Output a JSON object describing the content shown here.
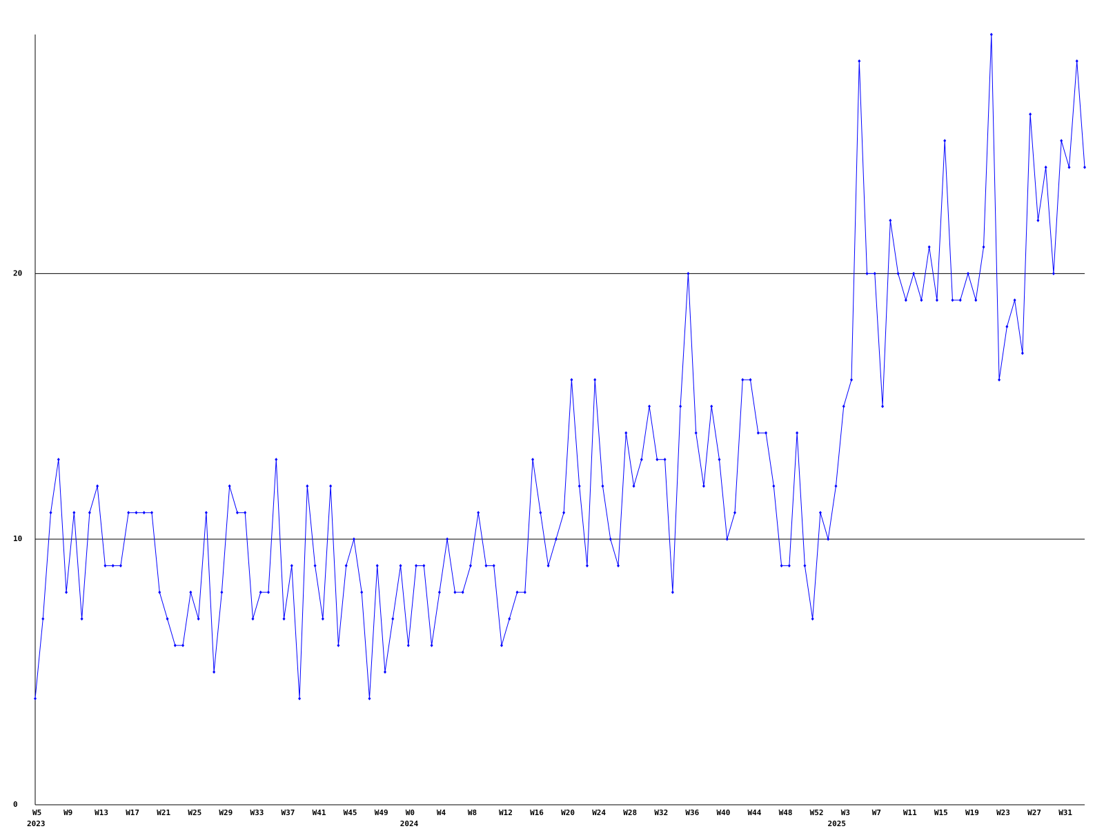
{
  "chart_data": {
    "type": "line",
    "categories": [
      "W5",
      null,
      null,
      null,
      "W9",
      null,
      null,
      null,
      "W13",
      null,
      null,
      null,
      "W17",
      null,
      null,
      null,
      "W21",
      null,
      null,
      null,
      "W25",
      null,
      null,
      null,
      "W29",
      null,
      null,
      null,
      "W33",
      null,
      null,
      null,
      "W37",
      null,
      null,
      null,
      "W41",
      null,
      null,
      null,
      "W45",
      null,
      null,
      null,
      "W49",
      null,
      null,
      null,
      "W0",
      null,
      null,
      null,
      "W4",
      null,
      null,
      null,
      "W8",
      null,
      null,
      null,
      "W12",
      null,
      null,
      null,
      "W16",
      null,
      null,
      null,
      "W20",
      null,
      null,
      null,
      "W24",
      null,
      null,
      null,
      "W28",
      null,
      null,
      null,
      "W32",
      null,
      null,
      null,
      "W36",
      null,
      null,
      null,
      "W40",
      null,
      null,
      null,
      "W44",
      null,
      null,
      null,
      "W48",
      null,
      null,
      null,
      "W52",
      null,
      null,
      null,
      "W3",
      null,
      null,
      null,
      "W7",
      null,
      null,
      null,
      "W11",
      null,
      null,
      null,
      "W15",
      null,
      null,
      null,
      "W19",
      null,
      null,
      null,
      "W23",
      null,
      null,
      null,
      "W27",
      null,
      null,
      null,
      "W31",
      null,
      null,
      null
    ],
    "years": [
      "2023",
      null,
      null,
      null,
      null,
      null,
      null,
      null,
      null,
      null,
      null,
      null,
      null,
      null,
      null,
      null,
      null,
      null,
      null,
      null,
      null,
      null,
      null,
      null,
      null,
      null,
      null,
      null,
      null,
      null,
      null,
      null,
      null,
      null,
      null,
      null,
      null,
      null,
      null,
      null,
      null,
      null,
      null,
      null,
      null,
      null,
      null,
      null,
      "2024",
      null,
      null,
      null,
      null,
      null,
      null,
      null,
      null,
      null,
      null,
      null,
      null,
      null,
      null,
      null,
      null,
      null,
      null,
      null,
      null,
      null,
      null,
      null,
      null,
      null,
      null,
      null,
      null,
      null,
      null,
      null,
      null,
      null,
      null,
      null,
      null,
      null,
      null,
      null,
      null,
      null,
      null,
      null,
      null,
      null,
      null,
      null,
      null,
      null,
      null,
      null,
      null,
      null,
      null,
      "2025",
      null,
      null,
      null,
      null,
      null,
      null,
      null,
      null,
      null,
      null,
      null,
      null,
      null,
      null,
      null,
      null,
      null,
      null,
      null,
      null,
      null,
      null,
      null,
      null,
      null,
      null,
      null,
      null,
      null,
      null,
      null,
      null,
      null,
      null
    ],
    "values": [
      4,
      7,
      11,
      13,
      8,
      11,
      7,
      11,
      12,
      9,
      9,
      9,
      11,
      11,
      11,
      11,
      8,
      7,
      6,
      6,
      8,
      7,
      11,
      5,
      8,
      12,
      11,
      11,
      7,
      8,
      8,
      13,
      7,
      9,
      4,
      12,
      9,
      7,
      12,
      6,
      9,
      10,
      8,
      4,
      9,
      5,
      7,
      9,
      6,
      9,
      9,
      6,
      8,
      10,
      8,
      8,
      9,
      11,
      9,
      9,
      6,
      7,
      8,
      8,
      13,
      11,
      9,
      10,
      11,
      16,
      12,
      9,
      16,
      12,
      10,
      9,
      14,
      12,
      13,
      15,
      13,
      13,
      8,
      15,
      20,
      14,
      12,
      15,
      13,
      10,
      11,
      16,
      16,
      14,
      14,
      12,
      9,
      9,
      14,
      9,
      7,
      11,
      10,
      12,
      15,
      16,
      28,
      20,
      20,
      15,
      22,
      20,
      19,
      20,
      19,
      21,
      19,
      25,
      19,
      19,
      20,
      19,
      21,
      29,
      16,
      18,
      19,
      17,
      26,
      22,
      24,
      20,
      25,
      24,
      28,
      24
    ],
    "color": "#0000ff",
    "ylim": [
      0,
      29
    ],
    "yticks": [
      0,
      10,
      20
    ],
    "grid": true
  }
}
